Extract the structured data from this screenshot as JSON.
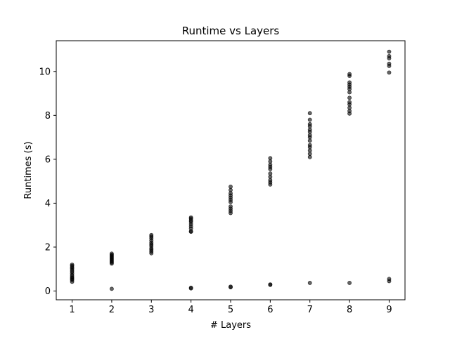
{
  "chart_data": {
    "type": "scatter",
    "title": "Runtime vs Layers",
    "xlabel": "# Layers",
    "ylabel": "Runtimes (s)",
    "xlim": [
      0.6,
      9.4
    ],
    "ylim": [
      -0.4,
      11.4
    ],
    "xticks": [
      1,
      2,
      3,
      4,
      5,
      6,
      7,
      8,
      9
    ],
    "yticks": [
      0,
      2,
      4,
      6,
      8,
      10
    ],
    "grid": false,
    "marker_color": "#000000",
    "marker_opacity": 0.6,
    "series": [
      {
        "points": [
          [
            1,
            0.42
          ],
          [
            1,
            0.5
          ],
          [
            1,
            0.55
          ],
          [
            1,
            0.6
          ],
          [
            1,
            0.65
          ],
          [
            1,
            0.72
          ],
          [
            1,
            0.8
          ],
          [
            1,
            0.88
          ],
          [
            1,
            0.95
          ],
          [
            1,
            1.02
          ],
          [
            1,
            1.08
          ],
          [
            1,
            1.15
          ],
          [
            1,
            1.2
          ],
          [
            2,
            0.1
          ],
          [
            2,
            1.25
          ],
          [
            2,
            1.3
          ],
          [
            2,
            1.35
          ],
          [
            2,
            1.4
          ],
          [
            2,
            1.45
          ],
          [
            2,
            1.5
          ],
          [
            2,
            1.55
          ],
          [
            2,
            1.6
          ],
          [
            2,
            1.65
          ],
          [
            2,
            1.7
          ],
          [
            3,
            1.72
          ],
          [
            3,
            1.8
          ],
          [
            3,
            1.88
          ],
          [
            3,
            1.95
          ],
          [
            3,
            2.05
          ],
          [
            3,
            2.12
          ],
          [
            3,
            2.2
          ],
          [
            3,
            2.3
          ],
          [
            3,
            2.4
          ],
          [
            3,
            2.48
          ],
          [
            3,
            2.55
          ],
          [
            4,
            0.12
          ],
          [
            4,
            0.15
          ],
          [
            4,
            2.7
          ],
          [
            4,
            2.72
          ],
          [
            4,
            2.85
          ],
          [
            4,
            2.95
          ],
          [
            4,
            3.05
          ],
          [
            4,
            3.15
          ],
          [
            4,
            3.22
          ],
          [
            4,
            3.3
          ],
          [
            4,
            3.35
          ],
          [
            5,
            0.17
          ],
          [
            5,
            0.2
          ],
          [
            5,
            3.55
          ],
          [
            5,
            3.65
          ],
          [
            5,
            3.75
          ],
          [
            5,
            3.85
          ],
          [
            5,
            4.05
          ],
          [
            5,
            4.15
          ],
          [
            5,
            4.25
          ],
          [
            5,
            4.35
          ],
          [
            5,
            4.45
          ],
          [
            5,
            4.6
          ],
          [
            5,
            4.75
          ],
          [
            6,
            0.28
          ],
          [
            6,
            0.3
          ],
          [
            6,
            4.85
          ],
          [
            6,
            4.95
          ],
          [
            6,
            5.05
          ],
          [
            6,
            5.2
          ],
          [
            6,
            5.35
          ],
          [
            6,
            5.55
          ],
          [
            6,
            5.65
          ],
          [
            6,
            5.75
          ],
          [
            6,
            5.9
          ],
          [
            6,
            6.05
          ],
          [
            7,
            0.37
          ],
          [
            7,
            6.1
          ],
          [
            7,
            6.25
          ],
          [
            7,
            6.4
          ],
          [
            7,
            6.55
          ],
          [
            7,
            6.65
          ],
          [
            7,
            6.85
          ],
          [
            7,
            7.0
          ],
          [
            7,
            7.1
          ],
          [
            7,
            7.25
          ],
          [
            7,
            7.35
          ],
          [
            7,
            7.5
          ],
          [
            7,
            7.6
          ],
          [
            7,
            7.8
          ],
          [
            7,
            8.1
          ],
          [
            8,
            0.37
          ],
          [
            8,
            8.08
          ],
          [
            8,
            8.2
          ],
          [
            8,
            8.35
          ],
          [
            8,
            8.5
          ],
          [
            8,
            8.6
          ],
          [
            8,
            8.8
          ],
          [
            8,
            9.05
          ],
          [
            8,
            9.2
          ],
          [
            8,
            9.3
          ],
          [
            8,
            9.4
          ],
          [
            8,
            9.5
          ],
          [
            8,
            9.8
          ],
          [
            8,
            9.88
          ],
          [
            9,
            0.45
          ],
          [
            9,
            0.55
          ],
          [
            9,
            9.95
          ],
          [
            9,
            10.25
          ],
          [
            9,
            10.35
          ],
          [
            9,
            10.6
          ],
          [
            9,
            10.7
          ],
          [
            9,
            10.9
          ]
        ]
      }
    ]
  }
}
